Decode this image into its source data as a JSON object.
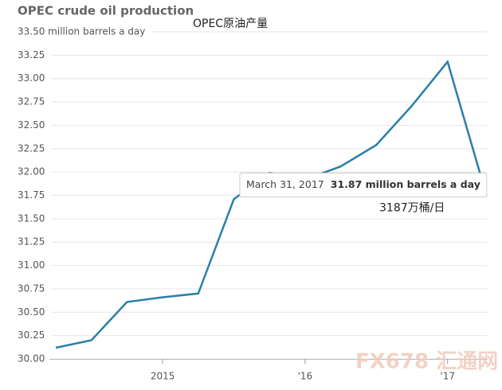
{
  "chart_data": {
    "type": "line",
    "title": "OPEC crude oil production",
    "subtitle": "OPEC原油产量",
    "categories": [
      null,
      null,
      null,
      "2015",
      null,
      null,
      null,
      "'16",
      null,
      null,
      null,
      "'17",
      null
    ],
    "series": [
      {
        "name": "OPEC crude oil production",
        "color": "#2b7fa8",
        "values": [
          30.12,
          30.2,
          30.61,
          30.66,
          30.7,
          31.71,
          31.99,
          31.92,
          32.06,
          32.29,
          32.71,
          33.18,
          31.87
        ],
        "value_labels": [
          null,
          null,
          null,
          null,
          null,
          null,
          null,
          null,
          null,
          null,
          null,
          null,
          "31.87 million barrels a day"
        ]
      }
    ],
    "ylim": [
      30,
      33.5
    ],
    "yticks": [
      {
        "value": 30,
        "label": "30.00"
      },
      {
        "value": 30.25,
        "label": "30.25"
      },
      {
        "value": 30.5,
        "label": "30.50"
      },
      {
        "value": 30.75,
        "label": "30.75"
      },
      {
        "value": 31,
        "label": "31.00"
      },
      {
        "value": 31.25,
        "label": "31.25"
      },
      {
        "value": 31.5,
        "label": "31.50"
      },
      {
        "value": 31.75,
        "label": "31.75"
      },
      {
        "value": 32,
        "label": "32.00"
      },
      {
        "value": 32.25,
        "label": "32.25"
      },
      {
        "value": 32.5,
        "label": "32.50"
      },
      {
        "value": 32.75,
        "label": "32.75"
      },
      {
        "value": 33,
        "label": "33.00"
      },
      {
        "value": 33.25,
        "label": "33.25"
      },
      {
        "value": 33.5,
        "label": "33.50 million barrels a day"
      }
    ],
    "grid": true,
    "tooltip_date": "March 31, 2017",
    "annotation": "3187万桶/日",
    "watermark": "FX678 汇通网"
  }
}
